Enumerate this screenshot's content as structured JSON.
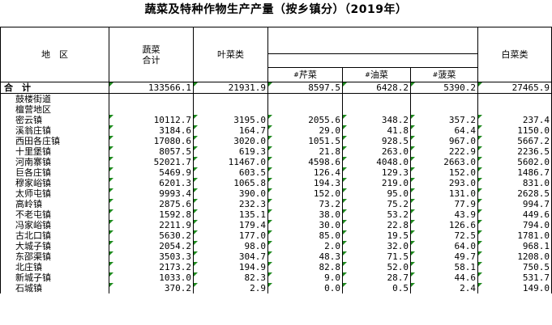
{
  "title": "蔬菜及特种作物生产产量（按乡镇分）（2019年）",
  "header": {
    "region": "地　区",
    "total_line1": "蔬菜",
    "total_line2": "合计",
    "leafy": "叶菜类",
    "celery": "芹菜",
    "rapeseed": "油菜",
    "spinach": "菠菜",
    "cabbage": "白菜类",
    "sub_mark": "#"
  },
  "total_row": {
    "name": "合　计",
    "values": [
      "133566.1",
      "21931.9",
      "8597.5",
      "6428.2",
      "5390.2",
      "27465.9"
    ]
  },
  "rows": [
    {
      "name": "鼓楼街道",
      "values": [
        "",
        "",
        "",
        "",
        "",
        ""
      ]
    },
    {
      "name": "檀营地区",
      "values": [
        "",
        "",
        "",
        "",
        "",
        ""
      ]
    },
    {
      "name": "密云镇",
      "values": [
        "10112.7",
        "3195.0",
        "2055.6",
        "348.2",
        "357.2",
        "237.4"
      ]
    },
    {
      "name": "溪翁庄镇",
      "values": [
        "3184.6",
        "164.7",
        "29.0",
        "41.8",
        "64.4",
        "1150.0"
      ]
    },
    {
      "name": "西田各庄镇",
      "values": [
        "17080.6",
        "3020.0",
        "1051.5",
        "928.5",
        "967.0",
        "5667.2"
      ]
    },
    {
      "name": "十里堡镇",
      "values": [
        "8057.5",
        "619.3",
        "21.8",
        "263.0",
        "222.9",
        "2236.5"
      ]
    },
    {
      "name": "河南寨镇",
      "values": [
        "52021.7",
        "11467.0",
        "4598.6",
        "4048.0",
        "2663.0",
        "5602.0"
      ]
    },
    {
      "name": "巨各庄镇",
      "values": [
        "5469.9",
        "603.5",
        "126.4",
        "129.3",
        "152.0",
        "1486.7"
      ]
    },
    {
      "name": "穆家峪镇",
      "values": [
        "6201.3",
        "1065.8",
        "194.3",
        "219.0",
        "293.0",
        "831.0"
      ]
    },
    {
      "name": "太师屯镇",
      "values": [
        "9993.4",
        "390.0",
        "152.0",
        "95.0",
        "131.0",
        "2628.5"
      ]
    },
    {
      "name": "高岭镇",
      "values": [
        "2875.6",
        "232.3",
        "73.2",
        "75.2",
        "77.9",
        "994.7"
      ]
    },
    {
      "name": "不老屯镇",
      "values": [
        "1592.8",
        "135.1",
        "38.0",
        "53.2",
        "43.9",
        "449.6"
      ]
    },
    {
      "name": "冯家峪镇",
      "values": [
        "2211.9",
        "179.4",
        "30.0",
        "22.8",
        "126.6",
        "794.0"
      ]
    },
    {
      "name": "古北口镇",
      "values": [
        "5630.2",
        "177.0",
        "85.0",
        "19.5",
        "72.5",
        "1781.0"
      ]
    },
    {
      "name": "大城子镇",
      "values": [
        "2054.2",
        "98.0",
        "2.0",
        "32.0",
        "64.0",
        "968.1"
      ]
    },
    {
      "name": "东邵渠镇",
      "values": [
        "3503.3",
        "304.7",
        "48.3",
        "71.5",
        "49.7",
        "1208.0"
      ]
    },
    {
      "name": "北庄镇",
      "values": [
        "2173.2",
        "194.9",
        "82.8",
        "52.0",
        "58.1",
        "750.5"
      ]
    },
    {
      "name": "新城子镇",
      "values": [
        "1033.0",
        "82.3",
        "9.0",
        "28.7",
        "44.6",
        "531.7"
      ]
    },
    {
      "name": "石城镇",
      "values": [
        "370.2",
        "2.9",
        "0.0",
        "0.5",
        "2.4",
        "149.0"
      ]
    }
  ]
}
